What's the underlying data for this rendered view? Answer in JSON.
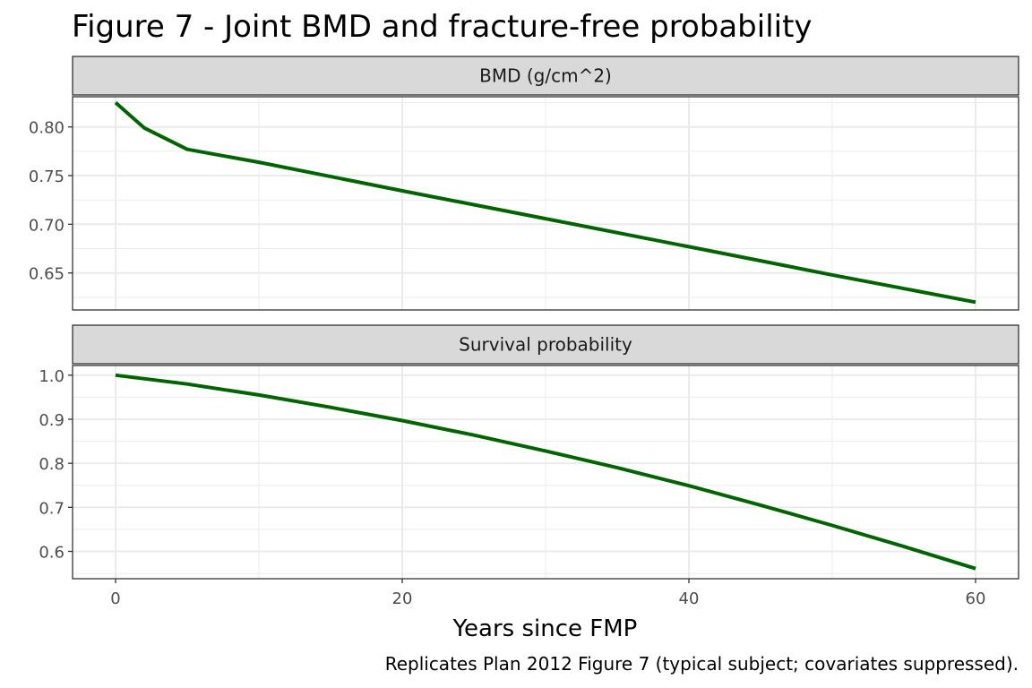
{
  "title": "Figure 7 - Joint BMD and fracture-free probability",
  "caption": "Replicates Plan 2012 Figure 7 (typical subject; covariates suppressed).",
  "colors": {
    "line": "#006400",
    "strip_fill": "#d9d9d9",
    "panel_border": "#333333",
    "grid": "#ebebeb"
  },
  "chart_data": {
    "type": "line",
    "xlabel": "Years since FMP",
    "xlim": [
      -3,
      63
    ],
    "x_ticks": [
      0,
      20,
      40,
      60
    ],
    "x_tick_labels": [
      "0",
      "20",
      "40",
      "60"
    ],
    "grid": true,
    "facets": [
      {
        "strip": "BMD (g/cm^2)",
        "ylim": [
          0.612,
          0.831
        ],
        "y_ticks": [
          0.65,
          0.7,
          0.75,
          0.8
        ],
        "y_tick_labels": [
          "0.65",
          "0.70",
          "0.75",
          "0.80"
        ],
        "x": [
          0,
          2,
          5,
          10,
          20,
          30,
          40,
          50,
          60
        ],
        "y": [
          0.825,
          0.799,
          0.777,
          0.7637,
          0.7344,
          0.7058,
          0.677,
          0.648,
          0.62
        ]
      },
      {
        "strip": "Survival probability",
        "ylim": [
          0.538,
          1.022
        ],
        "y_ticks": [
          0.6,
          0.7,
          0.8,
          0.9,
          1.0
        ],
        "y_tick_labels": [
          "0.6",
          "0.7",
          "0.8",
          "0.9",
          "1.0"
        ],
        "x": [
          0,
          5,
          10,
          15,
          20,
          25,
          30,
          35,
          40,
          45,
          50,
          55,
          60
        ],
        "y": [
          1.0,
          0.98,
          0.955,
          0.927,
          0.897,
          0.864,
          0.828,
          0.79,
          0.749,
          0.705,
          0.659,
          0.611,
          0.561
        ]
      }
    ]
  }
}
